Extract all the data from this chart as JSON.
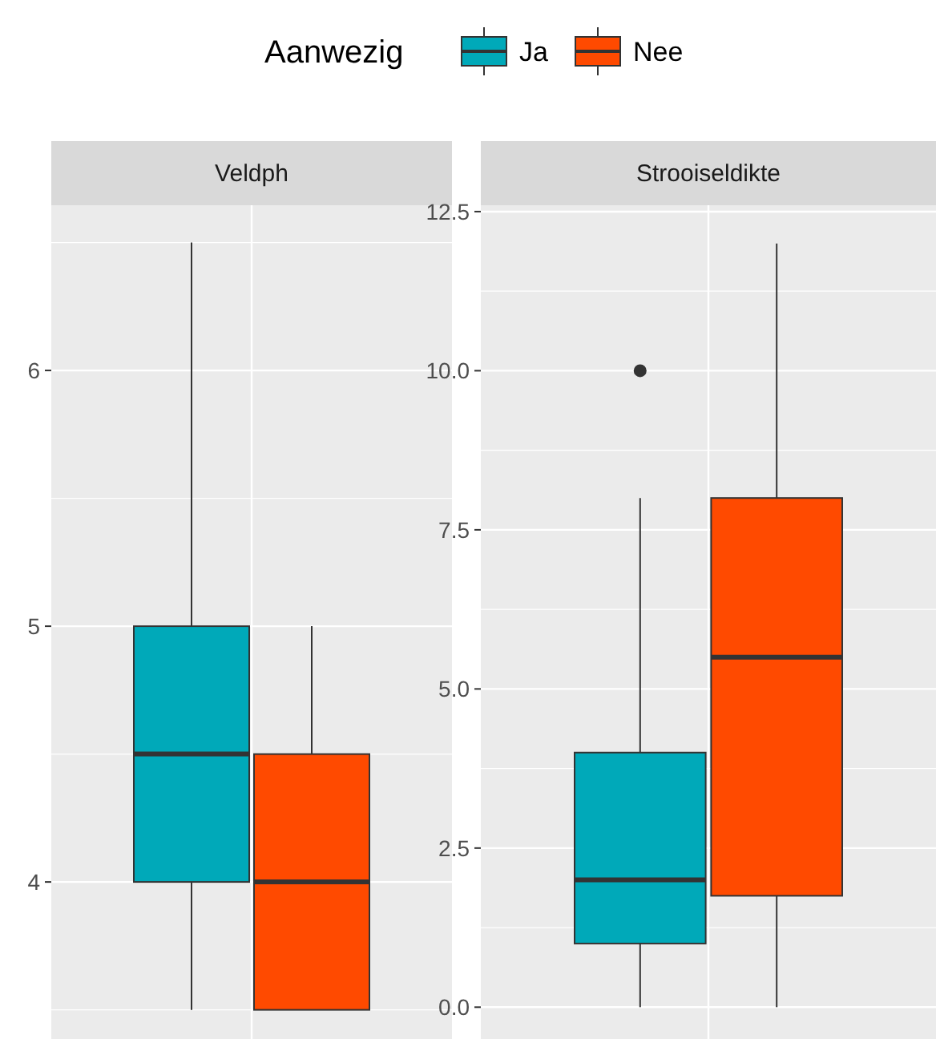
{
  "chart_data": [
    {
      "type": "box",
      "title": "Veldph",
      "categories": [
        null
      ],
      "legend_title": "Aanwezig",
      "legend": "top",
      "grid": true,
      "ylim": [
        3.386,
        6.646
      ],
      "yticks": [
        4,
        5,
        6
      ],
      "series": [
        {
          "name": "Ja",
          "color": "#00a9b9",
          "boxes": [
            {
              "low": 3.5,
              "q1": 4,
              "median": 4.5,
              "q3": 5,
              "high": 6.5
            }
          ]
        },
        {
          "name": "Nee",
          "color": "#ff4a00",
          "boxes": [
            {
              "low": 3.5,
              "q1": 3.5,
              "median": 4,
              "q3": 4.5,
              "high": 5
            }
          ]
        }
      ]
    },
    {
      "type": "box",
      "title": "Strooiseldikte",
      "categories": [
        null
      ],
      "grid": true,
      "ylim": [
        -0.5,
        12.6
      ],
      "yticks": [
        {
          "value": 0,
          "label": "0.0"
        },
        {
          "value": 2.5,
          "label": "2.5"
        },
        {
          "value": 5,
          "label": "5.0"
        },
        {
          "value": 7.5,
          "label": "7.5"
        },
        {
          "value": 10,
          "label": "10.0"
        },
        {
          "value": 12.5,
          "label": "12.5"
        }
      ],
      "series": [
        {
          "color": "#00a9b9",
          "boxes": [
            {
              "low": 0,
              "q1": 1,
              "median": 2,
              "q3": 4,
              "high": 8,
              "outliers": [
                10
              ]
            }
          ]
        },
        {
          "color": "#ff4a00",
          "boxes": [
            {
              "low": 0,
              "q1": 1.75,
              "median": 5.5,
              "q3": 8,
              "high": 12
            }
          ]
        }
      ]
    }
  ]
}
